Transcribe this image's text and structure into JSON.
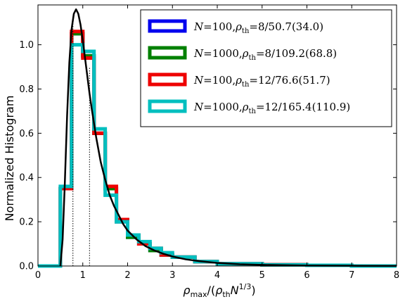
{
  "chart_data": {
    "type": "line",
    "title": "",
    "xlabel": "ρmax/(ρthN1/3)",
    "xlabel_parts": {
      "rho": "ρ",
      "max": "max",
      "open": "/(",
      "rho2": "ρ",
      "th": "th",
      "n": "N",
      "exp": "1/3",
      "close": ")"
    },
    "ylabel": "Normalized Histogram",
    "xlim": [
      0,
      8
    ],
    "ylim": [
      0,
      1.18
    ],
    "xticks": [
      "0",
      "1",
      "2",
      "3",
      "4",
      "5",
      "6",
      "7",
      "8"
    ],
    "yticks": [
      "0.0",
      "0.2",
      "0.4",
      "0.6",
      "0.8",
      "1.0"
    ],
    "ytick_values": [
      0,
      0.2,
      0.4,
      0.6,
      0.8,
      1.0
    ],
    "grid": false,
    "legend_position": "top-right",
    "series": [
      {
        "name": "N=100,ρth=8/50.7(34.0)",
        "label_parts": {
          "n": "100",
          "rho_th": "8/50.7(34.0)"
        },
        "kind": "step",
        "color": "#0000ee",
        "edges": [
          0,
          0.5,
          0.75,
          1.0,
          1.25,
          1.5,
          1.75,
          2.0,
          2.25,
          2.5,
          2.75,
          3.0,
          3.5,
          4.0,
          5.0,
          6.0,
          7.0,
          8.0
        ],
        "values": [
          0,
          0.35,
          1.05,
          0.95,
          0.6,
          0.35,
          0.2,
          0.13,
          0.1,
          0.07,
          0.05,
          0.04,
          0.02,
          0.01,
          0.005,
          0.003,
          0
        ]
      },
      {
        "name": "N=1000,ρth=8/109.2(68.8)",
        "label_parts": {
          "n": "1000",
          "rho_th": "8/109.2(68.8)"
        },
        "kind": "step",
        "color": "#008000",
        "edges": [
          0,
          0.5,
          0.75,
          1.0,
          1.25,
          1.5,
          1.75,
          2.0,
          2.25,
          2.5,
          2.75,
          3.0,
          3.5,
          4.0,
          5.0,
          6.0,
          7.0,
          8.0
        ],
        "values": [
          0,
          0.35,
          1.05,
          0.95,
          0.6,
          0.35,
          0.2,
          0.13,
          0.1,
          0.07,
          0.05,
          0.04,
          0.02,
          0.01,
          0.005,
          0.003,
          0
        ]
      },
      {
        "name": "N=100,ρth=12/76.6(51.7)",
        "label_parts": {
          "n": "100",
          "rho_th": "12/76.6(51.7)"
        },
        "kind": "step",
        "color": "#ee0000",
        "edges": [
          0,
          0.5,
          0.75,
          1.0,
          1.25,
          1.5,
          1.75,
          2.0,
          2.25,
          2.5,
          2.75,
          3.0,
          3.5,
          4.0,
          5.0,
          6.0,
          7.0,
          8.0
        ],
        "values": [
          0,
          0.35,
          1.06,
          0.94,
          0.6,
          0.36,
          0.21,
          0.14,
          0.1,
          0.08,
          0.05,
          0.04,
          0.02,
          0.01,
          0.006,
          0.003,
          0
        ]
      },
      {
        "name": "N=1000,ρth=12/165.4(110.9)",
        "label_parts": {
          "n": "1000",
          "rho_th": "12/165.4(110.9)"
        },
        "kind": "step",
        "color": "#00bfbf",
        "edges": [
          0,
          0.5,
          0.75,
          1.0,
          1.25,
          1.5,
          1.75,
          2.0,
          2.25,
          2.5,
          2.75,
          3.0,
          3.5,
          4.0,
          5.0,
          6.0,
          7.0,
          8.0
        ],
        "values": [
          0,
          0.36,
          1.0,
          0.97,
          0.62,
          0.32,
          0.2,
          0.14,
          0.11,
          0.08,
          0.06,
          0.04,
          0.02,
          0.01,
          0.005,
          0.003,
          0
        ]
      },
      {
        "kind": "curve",
        "color": "#000000",
        "x": [
          0.5,
          0.55,
          0.6,
          0.65,
          0.7,
          0.75,
          0.8,
          0.85,
          0.9,
          0.95,
          1.0,
          1.05,
          1.1,
          1.15,
          1.2,
          1.3,
          1.4,
          1.5,
          1.6,
          1.7,
          1.8,
          1.9,
          2.0,
          2.2,
          2.4,
          2.6,
          2.8,
          3.0,
          3.3,
          3.6,
          4.0,
          4.5,
          5.0,
          6.0,
          7.0,
          8.0
        ],
        "y": [
          0.0,
          0.12,
          0.38,
          0.68,
          0.92,
          1.07,
          1.14,
          1.16,
          1.14,
          1.09,
          1.02,
          0.94,
          0.86,
          0.78,
          0.71,
          0.58,
          0.47,
          0.39,
          0.32,
          0.27,
          0.23,
          0.19,
          0.16,
          0.12,
          0.09,
          0.07,
          0.055,
          0.043,
          0.03,
          0.022,
          0.014,
          0.008,
          0.005,
          0.002,
          0.001,
          0.0005
        ]
      }
    ],
    "vlines": [
      {
        "x": 0.78,
        "y_top": 1.1,
        "style": "dotted",
        "color": "#000000"
      },
      {
        "x": 1.15,
        "y_top": 0.9,
        "style": "dotted",
        "color": "#000000"
      }
    ]
  }
}
